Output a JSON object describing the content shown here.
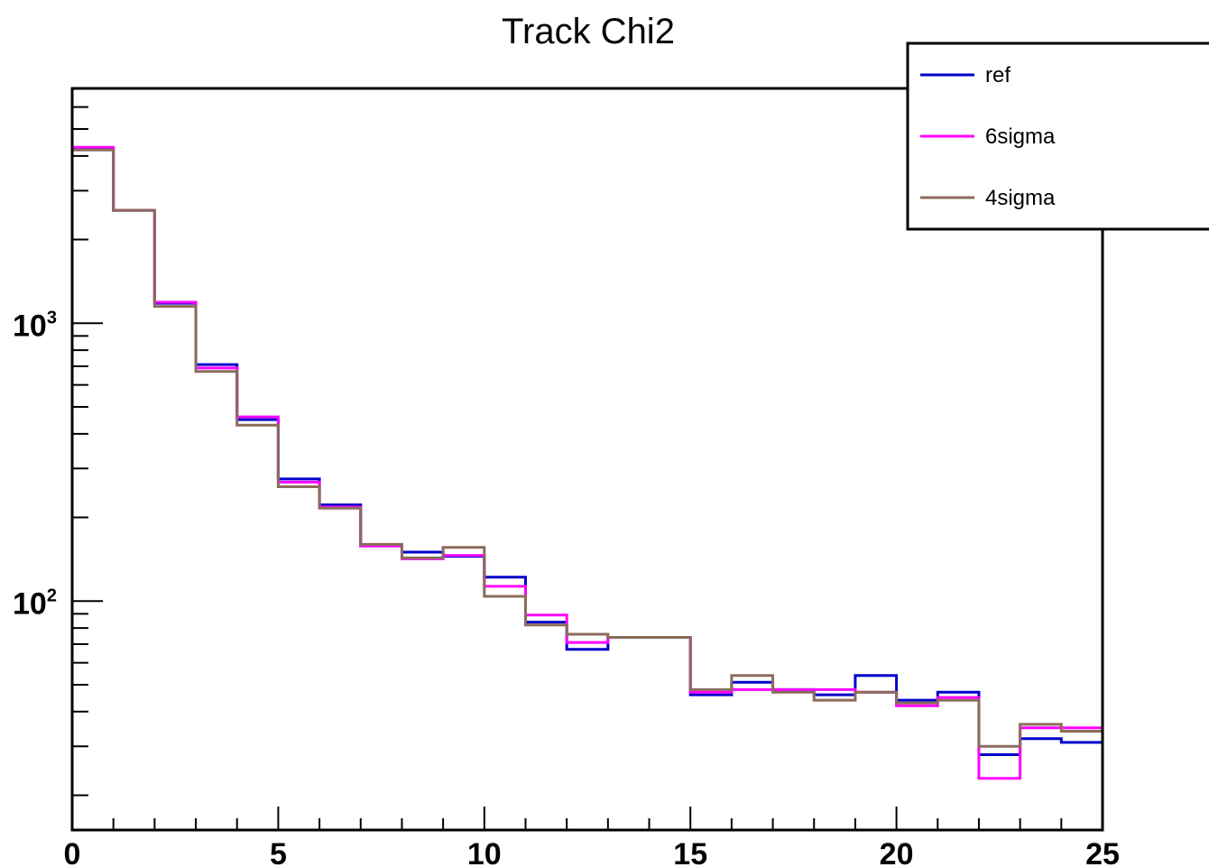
{
  "chart_data": {
    "type": "line",
    "title": "Track Chi2",
    "xlabel": "",
    "ylabel": "",
    "xlim": [
      0,
      25
    ],
    "ylim": [
      15,
      7000
    ],
    "yscale": "log",
    "bin_edges": [
      0,
      1,
      2,
      3,
      4,
      5,
      6,
      7,
      8,
      9,
      10,
      11,
      12,
      13,
      14,
      15,
      16,
      17,
      18,
      19,
      20,
      21,
      22,
      23,
      24,
      25
    ],
    "x_ticks": [
      "0",
      "5",
      "10",
      "15",
      "20",
      "25"
    ],
    "y_ticks": [
      {
        "base": "10",
        "exp": "2",
        "value": 100
      },
      {
        "base": "10",
        "exp": "3",
        "value": 1000
      }
    ],
    "grid": false,
    "legend_position": "top-right",
    "series": [
      {
        "name": "ref",
        "color": "#0000cc",
        "values": [
          4250,
          2550,
          1180,
          710,
          450,
          275,
          222,
          158,
          150,
          145,
          122,
          84,
          67,
          74,
          74,
          46,
          51,
          48,
          46,
          54,
          44,
          47,
          28,
          32,
          31
        ]
      },
      {
        "name": "6sigma",
        "color": "#ff00ff",
        "values": [
          4300,
          2550,
          1190,
          690,
          460,
          268,
          218,
          158,
          142,
          146,
          113,
          89,
          71,
          74,
          74,
          47,
          48,
          48,
          48,
          47,
          42,
          45,
          23,
          35,
          35
        ]
      },
      {
        "name": "4sigma",
        "color": "#8b6b5c",
        "values": [
          4200,
          2550,
          1150,
          670,
          430,
          258,
          216,
          160,
          143,
          156,
          104,
          82,
          76,
          74,
          74,
          48,
          54,
          47,
          44,
          47,
          43,
          44,
          30,
          36,
          34
        ]
      }
    ]
  }
}
